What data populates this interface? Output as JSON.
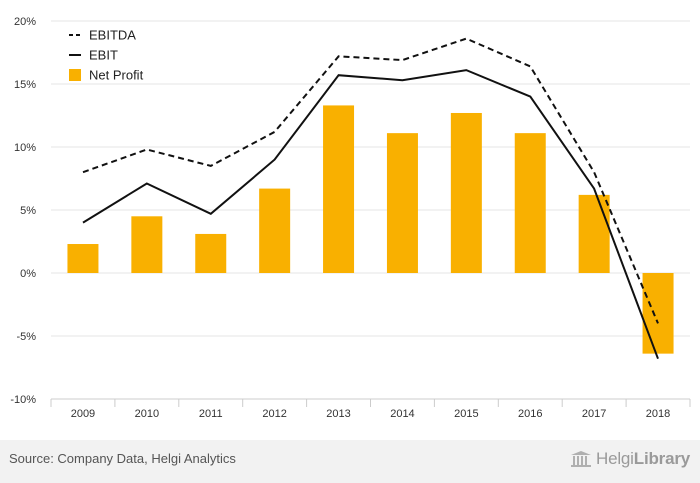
{
  "chart_data": {
    "type": "bar",
    "categories": [
      "2009",
      "2010",
      "2011",
      "2012",
      "2013",
      "2014",
      "2015",
      "2016",
      "2017",
      "2018"
    ],
    "series": [
      {
        "name": "EBITDA",
        "kind": "line",
        "style": "dashed",
        "color": "#111111",
        "values": [
          8.0,
          9.8,
          8.5,
          11.2,
          17.2,
          16.9,
          18.6,
          16.4,
          8.0,
          -4.0
        ]
      },
      {
        "name": "EBIT",
        "kind": "line",
        "style": "solid",
        "color": "#111111",
        "values": [
          4.0,
          7.1,
          4.7,
          9.0,
          15.7,
          15.3,
          16.1,
          14.0,
          6.7,
          -6.8
        ]
      },
      {
        "name": "Net Profit",
        "kind": "bar",
        "color": "#f9b000",
        "values": [
          2.3,
          4.5,
          3.1,
          6.7,
          13.3,
          11.1,
          12.7,
          11.1,
          6.2,
          -6.4
        ]
      }
    ],
    "y_ticks": [
      "20%",
      "15%",
      "10%",
      "5%",
      "0%",
      "-5%",
      "-10%"
    ],
    "y_tick_values": [
      20,
      15,
      10,
      5,
      0,
      -5,
      -10
    ],
    "ylim": [
      -10,
      20
    ],
    "grid": true,
    "legend_position": "top-left"
  },
  "footer": {
    "source": "Source: Company Data, Helgi Analytics",
    "brand_regular": "Helgi",
    "brand_bold": "Library"
  }
}
